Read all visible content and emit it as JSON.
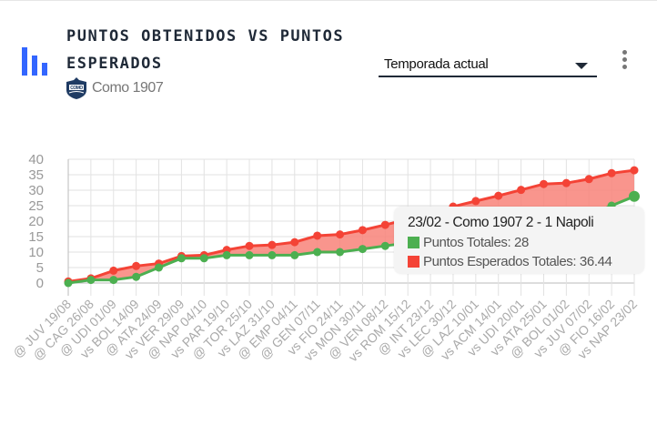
{
  "header": {
    "title": "PUNTOS OBTENIDOS VS PUNTOS ESPERADOS",
    "team": "Como 1907",
    "app_icon": "bar-chart-icon",
    "team_icon": "como-crest-icon"
  },
  "filter": {
    "selected": "Temporada actual"
  },
  "menu_icon": "more-vertical-icon",
  "colors": {
    "accent": "#3366ff",
    "green": "#4caf50",
    "red": "#f44336",
    "area": "#f88379"
  },
  "tooltip": {
    "title": "23/02 - Como 1907 2 - 1 Napoli",
    "rows": [
      {
        "label": "Puntos Totales: 28",
        "color": "#4caf50"
      },
      {
        "label": "Puntos Esperados Totales: 36.44",
        "color": "#f44336"
      }
    ]
  },
  "chart_data": {
    "type": "line",
    "categories": [
      "@ JUV 19/08",
      "@ CAG 26/08",
      "@ UDI 01/09",
      "vs BOL 14/09",
      "@ ATA 24/09",
      "vs VER 29/09",
      "@ NAP 04/10",
      "vs PAR 19/10",
      "@ TOR 25/10",
      "vs LAZ 31/10",
      "@ EMP 04/11",
      "@ GEN 07/11",
      "vs FIO 24/11",
      "vs MON 30/11",
      "@ VEN 08/12",
      "vs ROM 15/12",
      "@ INT 23/12",
      "vs LEC 30/12",
      "@ LAZ 10/01",
      "vs ACM 14/01",
      "vs UDI 20/01",
      "vs ATA 25/01",
      "@ BOL 01/02",
      "vs JUV 07/02",
      "@ FIO 16/02",
      "vs NAP 23/02"
    ],
    "series": [
      {
        "name": "Puntos Totales",
        "color": "#4caf50",
        "values": [
          0,
          1,
          1,
          2,
          5,
          8,
          8,
          9,
          9,
          9,
          9,
          10,
          10,
          11,
          12,
          13,
          14,
          15,
          16,
          16,
          17,
          19,
          22,
          22,
          25,
          28
        ]
      },
      {
        "name": "Puntos Esperados Totales",
        "color": "#f44336",
        "values": [
          0.5,
          1.5,
          4,
          5.5,
          6.3,
          8.7,
          9,
          10.7,
          12,
          12.3,
          13.2,
          15.3,
          15.7,
          17.1,
          18.8,
          20.6,
          22.5,
          24.7,
          26.5,
          28.2,
          30.1,
          32,
          32.3,
          33.6,
          35.5,
          36.44
        ]
      }
    ],
    "yticks": [
      0,
      5,
      10,
      15,
      20,
      25,
      30,
      35,
      40
    ],
    "ylim": [
      0,
      40
    ],
    "grid": true,
    "fill_between": true
  }
}
